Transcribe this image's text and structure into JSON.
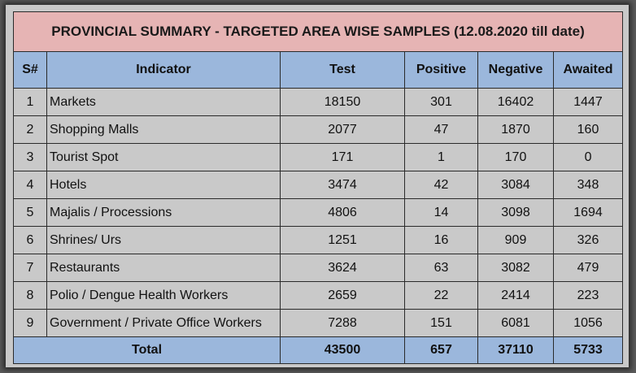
{
  "title": "PROVINCIAL SUMMARY - TARGETED AREA WISE SAMPLES (12.08.2020 till date)",
  "headers": {
    "sn": "S#",
    "indicator": "Indicator",
    "test": "Test",
    "positive": "Positive",
    "negative": "Negative",
    "awaited": "Awaited"
  },
  "rows": [
    {
      "sn": "1",
      "indicator": "Markets",
      "test": "18150",
      "positive": "301",
      "negative": "16402",
      "awaited": "1447"
    },
    {
      "sn": "2",
      "indicator": "Shopping Malls",
      "test": "2077",
      "positive": "47",
      "negative": "1870",
      "awaited": "160"
    },
    {
      "sn": "3",
      "indicator": "Tourist Spot",
      "test": "171",
      "positive": "1",
      "negative": "170",
      "awaited": "0"
    },
    {
      "sn": "4",
      "indicator": "Hotels",
      "test": "3474",
      "positive": "42",
      "negative": "3084",
      "awaited": "348"
    },
    {
      "sn": "5",
      "indicator": "Majalis / Processions",
      "test": "4806",
      "positive": "14",
      "negative": "3098",
      "awaited": "1694"
    },
    {
      "sn": "6",
      "indicator": "Shrines/ Urs",
      "test": "1251",
      "positive": "16",
      "negative": "909",
      "awaited": "326"
    },
    {
      "sn": "7",
      "indicator": "Restaurants",
      "test": "3624",
      "positive": "63",
      "negative": "3082",
      "awaited": "479"
    },
    {
      "sn": "8",
      "indicator": "Polio / Dengue Health Workers",
      "test": "2659",
      "positive": "22",
      "negative": "2414",
      "awaited": "223"
    },
    {
      "sn": "9",
      "indicator": "Government / Private Office Workers",
      "test": "7288",
      "positive": "151",
      "negative": "6081",
      "awaited": "1056"
    }
  ],
  "total": {
    "label": "Total",
    "test": "43500",
    "positive": "657",
    "negative": "37110",
    "awaited": "5733"
  },
  "colors": {
    "title_bg": "#e6b4b4",
    "header_bg": "#9bb7dc",
    "row_bg": "#c9c9c9",
    "outer_bg": "#5a5a5a"
  }
}
